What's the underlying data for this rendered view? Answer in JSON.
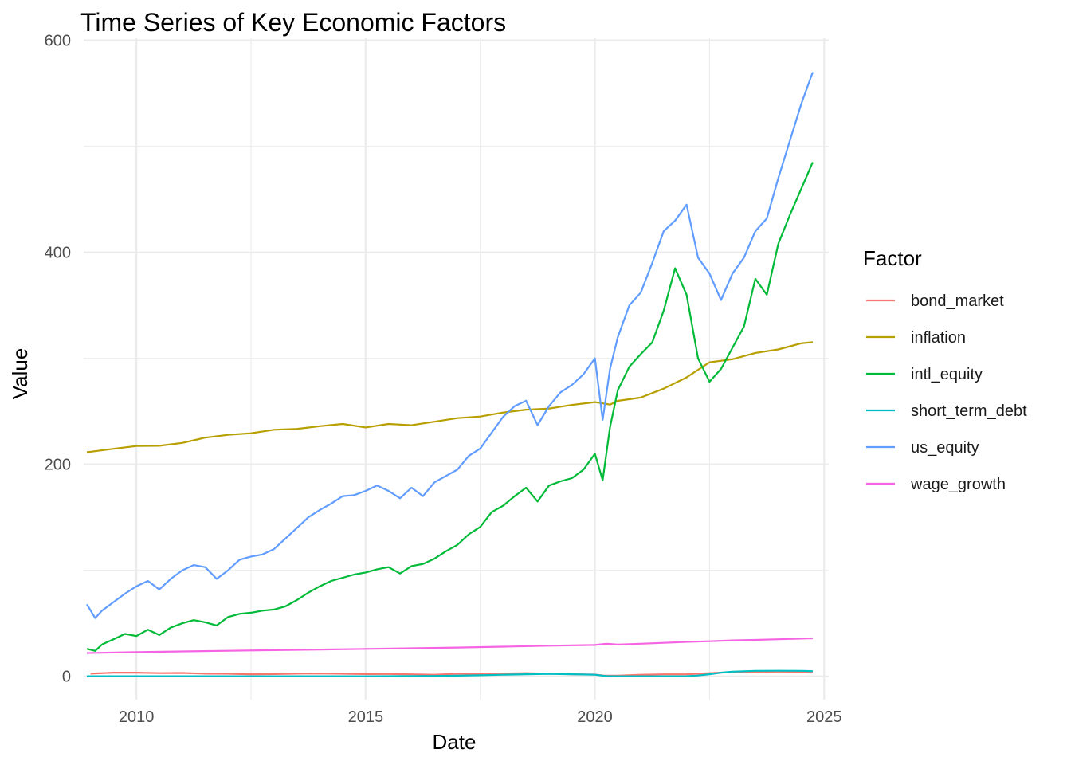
{
  "chart_data": {
    "type": "line",
    "title": "Time Series of Key Economic Factors",
    "xlabel": "Date",
    "ylabel": "Value",
    "xlim": [
      2008.85,
      2025.1
    ],
    "ylim": [
      -22,
      602
    ],
    "x_ticks": [
      2010,
      2015,
      2020,
      2025
    ],
    "x_tick_labels": [
      "2010",
      "2015",
      "2020",
      "2025"
    ],
    "y_ticks": [
      0,
      200,
      400,
      600
    ],
    "y_tick_labels": [
      "0",
      "200",
      "400",
      "600"
    ],
    "grid": true,
    "legend": {
      "title": "Factor",
      "position": "right"
    },
    "series": [
      {
        "name": "bond_market",
        "color": "#F8766D",
        "x": [
          2009.0,
          2009.5,
          2010.0,
          2010.5,
          2011.0,
          2011.5,
          2012.0,
          2012.5,
          2013.0,
          2013.5,
          2014.0,
          2014.5,
          2015.0,
          2015.5,
          2016.0,
          2016.5,
          2017.0,
          2017.5,
          2018.0,
          2018.5,
          2019.0,
          2019.5,
          2020.0,
          2020.2,
          2020.5,
          2021.0,
          2021.5,
          2022.0,
          2022.5,
          2023.0,
          2023.5,
          2024.0,
          2024.5,
          2024.75
        ],
        "y": [
          2.5,
          3.5,
          3.5,
          3.0,
          3.2,
          2.5,
          2.4,
          2.0,
          2.1,
          2.5,
          2.7,
          2.4,
          2.1,
          2.2,
          1.9,
          1.5,
          2.4,
          2.3,
          2.7,
          3.0,
          2.6,
          2.0,
          1.7,
          0.7,
          0.7,
          1.5,
          1.9,
          2.0,
          3.0,
          4.0,
          4.2,
          4.5,
          4.3,
          4.1
        ]
      },
      {
        "name": "inflation",
        "color": "#B79F00",
        "x": [
          2008.92,
          2009.5,
          2010.0,
          2010.5,
          2011.0,
          2011.5,
          2012.0,
          2012.5,
          2013.0,
          2013.5,
          2014.0,
          2014.5,
          2015.0,
          2015.5,
          2016.0,
          2016.5,
          2017.0,
          2017.5,
          2018.0,
          2018.5,
          2019.0,
          2019.5,
          2020.0,
          2020.33,
          2020.5,
          2021.0,
          2021.5,
          2022.0,
          2022.5,
          2023.0,
          2023.5,
          2024.0,
          2024.5,
          2024.75
        ],
        "y": [
          211.4,
          214.7,
          217.3,
          217.5,
          220.2,
          225.2,
          227.8,
          229.3,
          232.6,
          233.5,
          236.0,
          238.1,
          234.8,
          238.1,
          236.9,
          240.2,
          243.6,
          245.1,
          248.9,
          251.6,
          252.6,
          256.1,
          258.7,
          256.4,
          259.9,
          263.0,
          271.4,
          282.0,
          296.3,
          299.2,
          305.1,
          308.4,
          314.2,
          315.3
        ]
      },
      {
        "name": "intl_equity",
        "color": "#00BA38",
        "x": [
          2008.92,
          2009.1,
          2009.25,
          2009.5,
          2009.75,
          2010.0,
          2010.25,
          2010.5,
          2010.75,
          2011.0,
          2011.25,
          2011.5,
          2011.75,
          2012.0,
          2012.25,
          2012.5,
          2012.75,
          2013.0,
          2013.25,
          2013.5,
          2013.75,
          2014.0,
          2014.25,
          2014.5,
          2014.75,
          2015.0,
          2015.25,
          2015.5,
          2015.75,
          2016.0,
          2016.25,
          2016.5,
          2016.75,
          2017.0,
          2017.25,
          2017.5,
          2017.75,
          2018.0,
          2018.25,
          2018.5,
          2018.75,
          2019.0,
          2019.25,
          2019.5,
          2019.75,
          2020.0,
          2020.17,
          2020.33,
          2020.5,
          2020.75,
          2021.0,
          2021.25,
          2021.5,
          2021.75,
          2022.0,
          2022.25,
          2022.5,
          2022.75,
          2023.0,
          2023.25,
          2023.5,
          2023.75,
          2024.0,
          2024.25,
          2024.5,
          2024.75
        ],
        "y": [
          26,
          24,
          30,
          35,
          40,
          38,
          44,
          39,
          46,
          50,
          53,
          51,
          48,
          56,
          59,
          60,
          62,
          63,
          66,
          72,
          79,
          85,
          90,
          93,
          96,
          98,
          101,
          103,
          97,
          104,
          106,
          111,
          118,
          124,
          134,
          141,
          155,
          161,
          170,
          178,
          165,
          180,
          184,
          187,
          195,
          210,
          185,
          235,
          270,
          292,
          304,
          315,
          345,
          385,
          360,
          300,
          278,
          290,
          310,
          330,
          375,
          360,
          408,
          435,
          460,
          485
        ]
      },
      {
        "name": "short_term_debt",
        "color": "#00BFC4",
        "x": [
          2008.92,
          2009.5,
          2010.0,
          2011.0,
          2012.0,
          2013.0,
          2014.0,
          2015.0,
          2015.5,
          2016.0,
          2016.5,
          2017.0,
          2017.5,
          2018.0,
          2018.5,
          2019.0,
          2019.5,
          2020.0,
          2020.25,
          2020.5,
          2021.0,
          2021.5,
          2022.0,
          2022.25,
          2022.5,
          2022.75,
          2023.0,
          2023.5,
          2024.0,
          2024.5,
          2024.75
        ],
        "y": [
          0.1,
          0.1,
          0.1,
          0.1,
          0.1,
          0.1,
          0.1,
          0.1,
          0.2,
          0.3,
          0.4,
          0.6,
          1.0,
          1.5,
          2.0,
          2.3,
          2.0,
          1.5,
          0.2,
          0.1,
          0.1,
          0.1,
          0.2,
          0.8,
          2.0,
          3.5,
          4.5,
          5.2,
          5.3,
          5.2,
          4.9
        ]
      },
      {
        "name": "us_equity",
        "color": "#619CFF",
        "x": [
          2008.92,
          2009.1,
          2009.25,
          2009.5,
          2009.75,
          2010.0,
          2010.25,
          2010.5,
          2010.75,
          2011.0,
          2011.25,
          2011.5,
          2011.75,
          2012.0,
          2012.25,
          2012.5,
          2012.75,
          2013.0,
          2013.25,
          2013.5,
          2013.75,
          2014.0,
          2014.25,
          2014.5,
          2014.75,
          2015.0,
          2015.25,
          2015.5,
          2015.75,
          2016.0,
          2016.25,
          2016.5,
          2016.75,
          2017.0,
          2017.25,
          2017.5,
          2017.75,
          2018.0,
          2018.25,
          2018.5,
          2018.75,
          2019.0,
          2019.25,
          2019.5,
          2019.75,
          2020.0,
          2020.17,
          2020.33,
          2020.5,
          2020.75,
          2021.0,
          2021.25,
          2021.5,
          2021.75,
          2022.0,
          2022.25,
          2022.5,
          2022.75,
          2023.0,
          2023.25,
          2023.5,
          2023.75,
          2024.0,
          2024.25,
          2024.5,
          2024.75
        ],
        "y": [
          68,
          55,
          62,
          70,
          78,
          85,
          90,
          82,
          92,
          100,
          105,
          103,
          92,
          100,
          110,
          113,
          115,
          120,
          130,
          140,
          150,
          157,
          163,
          170,
          171,
          175,
          180,
          175,
          168,
          178,
          170,
          183,
          189,
          195,
          208,
          215,
          230,
          245,
          255,
          260,
          237,
          255,
          268,
          275,
          285,
          300,
          242,
          290,
          320,
          350,
          362,
          390,
          420,
          430,
          445,
          395,
          380,
          355,
          380,
          395,
          420,
          432,
          470,
          505,
          540,
          570
        ]
      },
      {
        "name": "wage_growth",
        "color": "#F564E3",
        "x": [
          2008.92,
          2010.0,
          2011.0,
          2012.0,
          2013.0,
          2014.0,
          2015.0,
          2016.0,
          2017.0,
          2018.0,
          2019.0,
          2020.0,
          2020.25,
          2020.5,
          2021.0,
          2021.5,
          2022.0,
          2022.5,
          2023.0,
          2023.5,
          2024.0,
          2024.5,
          2024.75
        ],
        "y": [
          22.0,
          22.8,
          23.5,
          24.1,
          24.7,
          25.3,
          25.9,
          26.5,
          27.2,
          28.0,
          28.9,
          29.6,
          30.8,
          30.0,
          30.8,
          31.6,
          32.5,
          33.1,
          33.9,
          34.4,
          35.0,
          35.6,
          35.9
        ]
      }
    ]
  }
}
